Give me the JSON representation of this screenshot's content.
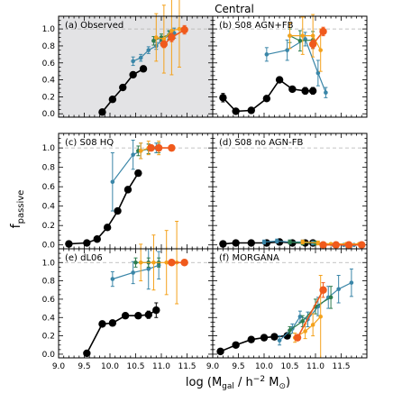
{
  "figure": {
    "title": "Central",
    "ylabel_main": "f",
    "ylabel_sub": "passive",
    "xlabel": "log (M",
    "xlabel_sub_gal": "gal",
    "xlabel_mid": " / h",
    "xlabel_sup": "−2",
    "xlabel_end": " M",
    "xlabel_sun": "⊙",
    "xlabel_close": ")"
  },
  "colors": {
    "black": "#000000",
    "blue": "#3a86a8",
    "green": "#2e7d4f",
    "orange": "#f4a21c",
    "red": "#f05a1c",
    "shade": "#e3e3e5",
    "dash": "#b0b0b0"
  },
  "chart_data": [
    {
      "type": "line",
      "panel_label": "(a) Observed",
      "shaded": true,
      "x_ticks": [
        "9.0",
        "9.5",
        "10.0",
        "10.5",
        "11.0",
        "11.5"
      ],
      "y_ticks": [
        "0.0",
        "0.2",
        "0.4",
        "0.6",
        "0.8",
        "1.0"
      ],
      "xlim": [
        9.0,
        12.0
      ],
      "ylim": [
        -0.04,
        1.15
      ],
      "series": [
        {
          "color": "black",
          "size": "big",
          "x": [
            9.85,
            10.05,
            10.25,
            10.45,
            10.65
          ],
          "y": [
            0.02,
            0.17,
            0.31,
            0.46,
            0.53
          ],
          "err": [
            0.02,
            0.02,
            0.02,
            0.02,
            0.03
          ]
        },
        {
          "color": "blue",
          "size": "small",
          "x": [
            10.45,
            10.6,
            10.75,
            10.9,
            11.0,
            11.15,
            11.25
          ],
          "y": [
            0.62,
            0.66,
            0.75,
            0.8,
            0.87,
            0.92,
            0.95
          ],
          "err": [
            0.05,
            0.04,
            0.04,
            0.04,
            0.04,
            0.05,
            0.06
          ]
        },
        {
          "color": "green",
          "size": "small",
          "x": [
            10.85,
            11.0,
            11.15
          ],
          "y": [
            0.86,
            0.9,
            0.93
          ],
          "err": [
            0.05,
            0.04,
            0.05
          ]
        },
        {
          "color": "orange",
          "size": "small",
          "x": [
            10.9,
            11.05,
            11.2,
            11.35
          ],
          "y": [
            0.9,
            0.88,
            0.98,
            1.0
          ],
          "err": [
            0.28,
            0.4,
            0.52,
            0.45
          ]
        },
        {
          "color": "red",
          "size": "big",
          "x": [
            11.05,
            11.2,
            11.45
          ],
          "y": [
            0.82,
            0.9,
            0.99
          ],
          "err": [
            0.04,
            0.05,
            0.05
          ]
        }
      ]
    },
    {
      "type": "line",
      "panel_label": "(b) S08 AGN+FB",
      "shaded": false,
      "x_ticks": [
        "9.0",
        "9.5",
        "10.0",
        "10.5",
        "11.0",
        "11.5"
      ],
      "y_ticks": [],
      "xlim": [
        9.0,
        12.0
      ],
      "ylim": [
        -0.04,
        1.15
      ],
      "series": [
        {
          "color": "black",
          "size": "big",
          "x": [
            9.2,
            9.45,
            9.75,
            10.05,
            10.3,
            10.55,
            10.8,
            10.95
          ],
          "y": [
            0.19,
            0.03,
            0.04,
            0.18,
            0.4,
            0.29,
            0.27,
            0.27
          ],
          "err": [
            0.05,
            0.03,
            0.02,
            0.03,
            0.03,
            0.03,
            0.04,
            0.04
          ]
        },
        {
          "color": "blue",
          "size": "small",
          "x": [
            10.05,
            10.45,
            10.8,
            11.05,
            11.2
          ],
          "y": [
            0.7,
            0.75,
            0.88,
            0.48,
            0.25
          ],
          "err": [
            0.08,
            0.12,
            0.08,
            0.15,
            0.06
          ]
        },
        {
          "color": "green",
          "size": "small",
          "x": [
            10.5,
            10.7,
            10.95
          ],
          "y": [
            0.92,
            0.86,
            0.87
          ],
          "err": [
            0.08,
            0.12,
            0.1
          ]
        },
        {
          "color": "orange",
          "size": "small",
          "x": [
            10.5,
            10.75,
            10.95,
            11.1
          ],
          "y": [
            0.92,
            0.92,
            0.92,
            0.75
          ],
          "err": [
            0.15,
            0.22,
            0.25,
            0.25
          ]
        },
        {
          "color": "red",
          "size": "big",
          "x": [
            10.95,
            11.15
          ],
          "y": [
            0.82,
            0.97
          ],
          "err": [
            0.05,
            0.05
          ]
        }
      ]
    },
    {
      "type": "line",
      "panel_label": "(c) S08 HQ",
      "shaded": false,
      "x_ticks": [
        "9.0",
        "9.5",
        "10.0",
        "10.5",
        "11.0",
        "11.5"
      ],
      "y_ticks": [
        "0.0",
        "0.2",
        "0.4",
        "0.6",
        "0.8",
        "1.0"
      ],
      "xlim": [
        9.0,
        12.0
      ],
      "ylim": [
        -0.04,
        1.15
      ],
      "series": [
        {
          "color": "black",
          "size": "big",
          "x": [
            9.2,
            9.55,
            9.75,
            9.95,
            10.15,
            10.35,
            10.55
          ],
          "y": [
            0.01,
            0.02,
            0.06,
            0.18,
            0.35,
            0.57,
            0.74
          ],
          "err": [
            0.01,
            0.01,
            0.01,
            0.02,
            0.02,
            0.03,
            0.03
          ]
        },
        {
          "color": "blue",
          "size": "small",
          "x": [
            10.05,
            10.45,
            10.6,
            10.75,
            10.9
          ],
          "y": [
            0.65,
            0.93,
            0.97,
            0.99,
            1.0
          ],
          "err": [
            0.3,
            0.15,
            0.08,
            0.05,
            0.05
          ]
        },
        {
          "color": "green",
          "size": "small",
          "x": [
            10.55,
            10.75,
            10.95
          ],
          "y": [
            0.97,
            0.99,
            1.0
          ],
          "err": [
            0.05,
            0.05,
            0.05
          ]
        },
        {
          "color": "orange",
          "size": "small",
          "x": [
            10.6,
            10.75,
            10.95
          ],
          "y": [
            0.97,
            1.0,
            1.0
          ],
          "err": [
            0.08,
            0.07,
            0.07
          ]
        },
        {
          "color": "red",
          "size": "big",
          "x": [
            10.8,
            10.95,
            11.2
          ],
          "y": [
            1.0,
            1.0,
            1.0
          ],
          "err": [
            0.03,
            0.03,
            0.03
          ]
        }
      ]
    },
    {
      "type": "line",
      "panel_label": "(d) S08 no AGN-FB",
      "shaded": false,
      "x_ticks": [
        "9.0",
        "9.5",
        "10.0",
        "10.5",
        "11.0",
        "11.5"
      ],
      "y_ticks": [],
      "xlim": [
        9.0,
        12.0
      ],
      "ylim": [
        -0.04,
        1.15
      ],
      "series": [
        {
          "color": "black",
          "size": "big",
          "x": [
            9.2,
            9.45,
            9.75,
            10.05,
            10.3,
            10.55,
            10.8,
            10.95
          ],
          "y": [
            0.01,
            0.02,
            0.02,
            0.02,
            0.03,
            0.02,
            0.02,
            0.02
          ],
          "err": [
            0.01,
            0.01,
            0.01,
            0.01,
            0.01,
            0.01,
            0.01,
            0.01
          ]
        },
        {
          "color": "blue",
          "size": "small",
          "x": [
            10.0,
            10.25,
            10.5,
            10.75,
            10.95,
            11.15,
            11.35,
            11.55,
            11.75
          ],
          "y": [
            0.03,
            0.04,
            0.03,
            0.03,
            0.02,
            0.01,
            0.0,
            0.0,
            0.0
          ],
          "err": [
            0.02,
            0.02,
            0.02,
            0.02,
            0.02,
            0.02,
            0.01,
            0.01,
            0.01
          ]
        },
        {
          "color": "green",
          "size": "small",
          "x": [
            10.5,
            10.75,
            11.0
          ],
          "y": [
            0.03,
            0.02,
            0.02
          ],
          "err": [
            0.02,
            0.02,
            0.02
          ]
        },
        {
          "color": "orange",
          "size": "small",
          "x": [
            10.75,
            11.05,
            11.3,
            11.6,
            11.85
          ],
          "y": [
            0.03,
            0.02,
            0.01,
            0.01,
            0.01
          ],
          "err": [
            0.02,
            0.02,
            0.01,
            0.01,
            0.01
          ]
        },
        {
          "color": "red",
          "size": "big",
          "x": [
            11.15,
            11.4,
            11.65,
            11.9
          ],
          "y": [
            0.0,
            0.0,
            0.0,
            0.0
          ],
          "err": [
            0.01,
            0.01,
            0.01,
            0.01
          ]
        }
      ]
    },
    {
      "type": "line",
      "panel_label": "(e) dL06",
      "shaded": false,
      "x_ticks": [
        "9.0",
        "9.5",
        "10.0",
        "10.5",
        "11.0",
        "11.5"
      ],
      "y_ticks": [
        "0.0",
        "0.2",
        "0.4",
        "0.6",
        "0.8",
        "1.0"
      ],
      "xlim": [
        9.0,
        12.0
      ],
      "ylim": [
        -0.04,
        1.15
      ],
      "series": [
        {
          "color": "black",
          "size": "big",
          "x": [
            9.55,
            9.85,
            10.05,
            10.3,
            10.55,
            10.75,
            10.9
          ],
          "y": [
            0.01,
            0.33,
            0.34,
            0.42,
            0.42,
            0.43,
            0.48
          ],
          "err": [
            0.01,
            0.03,
            0.03,
            0.03,
            0.03,
            0.04,
            0.08
          ]
        },
        {
          "color": "blue",
          "size": "small",
          "x": [
            10.05,
            10.45,
            10.75,
            10.95
          ],
          "y": [
            0.82,
            0.89,
            0.93,
            0.97
          ],
          "err": [
            0.08,
            0.12,
            0.22,
            0.15
          ]
        },
        {
          "color": "green",
          "size": "small",
          "x": [
            10.5,
            10.75,
            10.95
          ],
          "y": [
            1.0,
            1.0,
            1.0
          ],
          "err": [
            0.05,
            0.05,
            0.05
          ]
        },
        {
          "color": "orange",
          "size": "small",
          "x": [
            10.6,
            10.85,
            11.1,
            11.3
          ],
          "y": [
            1.0,
            1.0,
            1.0,
            1.0
          ],
          "err": [
            0.2,
            0.3,
            0.35,
            0.45
          ]
        },
        {
          "color": "red",
          "size": "big",
          "x": [
            11.2,
            11.45
          ],
          "y": [
            1.0,
            1.0
          ],
          "err": [
            0.03,
            0.03
          ]
        }
      ]
    },
    {
      "type": "line",
      "panel_label": "(f) MORGANA",
      "shaded": false,
      "x_ticks": [
        "9.0",
        "9.5",
        "10.0",
        "10.5",
        "11.0",
        "11.5"
      ],
      "y_ticks": [],
      "xlim": [
        9.0,
        12.0
      ],
      "ylim": [
        -0.04,
        1.15
      ],
      "series": [
        {
          "color": "black",
          "size": "big",
          "x": [
            9.15,
            9.45,
            9.75,
            10.0,
            10.2,
            10.45
          ],
          "y": [
            0.03,
            0.1,
            0.16,
            0.18,
            0.19,
            0.2
          ],
          "err": [
            0.02,
            0.02,
            0.02,
            0.02,
            0.02,
            0.02
          ]
        },
        {
          "color": "blue",
          "size": "small",
          "x": [
            10.3,
            10.55,
            10.7,
            10.85,
            11.05,
            11.25,
            11.45,
            11.7
          ],
          "y": [
            0.15,
            0.28,
            0.41,
            0.38,
            0.52,
            0.62,
            0.71,
            0.78
          ],
          "err": [
            0.05,
            0.05,
            0.06,
            0.08,
            0.1,
            0.12,
            0.15,
            0.15
          ]
        },
        {
          "color": "green",
          "size": "small",
          "x": [
            10.5,
            10.75,
            11.0,
            11.3
          ],
          "y": [
            0.26,
            0.36,
            0.52,
            0.62
          ],
          "err": [
            0.04,
            0.06,
            0.08,
            0.12
          ]
        },
        {
          "color": "orange",
          "size": "small",
          "x": [
            10.6,
            10.8,
            10.95,
            11.1
          ],
          "y": [
            0.18,
            0.25,
            0.32,
            0.41
          ],
          "err": [
            0.05,
            0.08,
            0.12,
            0.45
          ]
        },
        {
          "color": "red",
          "size": "big",
          "x": [
            10.65,
            11.15
          ],
          "y": [
            0.18,
            0.7
          ],
          "err": [
            0.03,
            0.08
          ]
        }
      ]
    }
  ]
}
